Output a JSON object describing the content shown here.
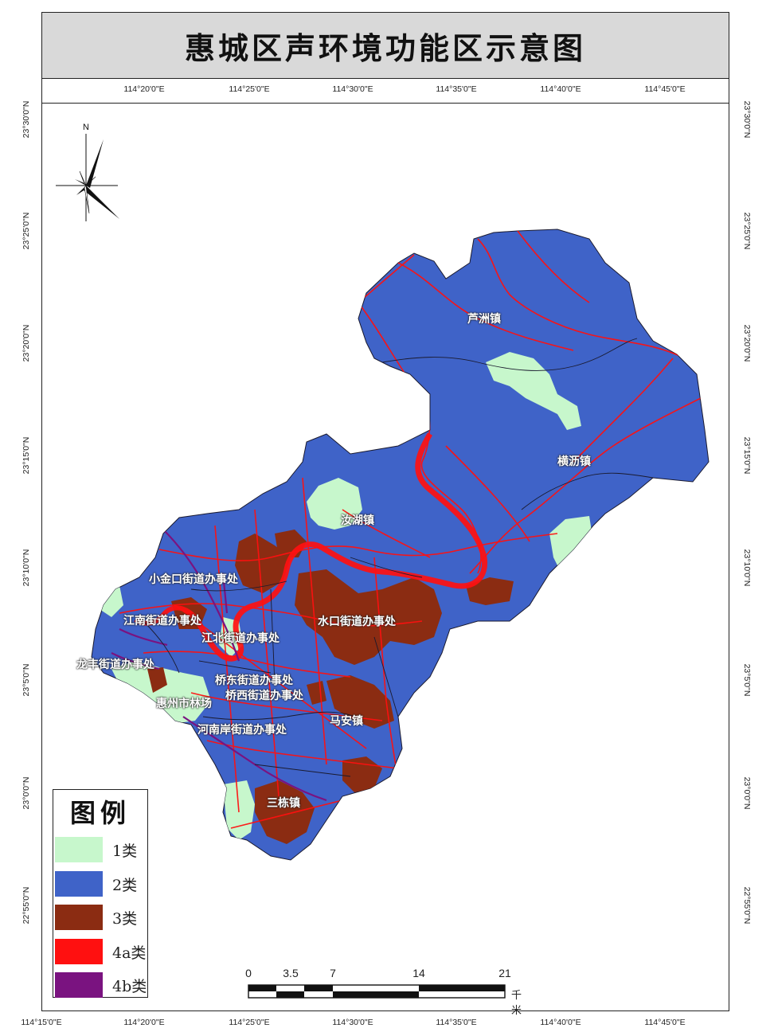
{
  "title": "惠城区声环境功能区示意图",
  "graticule": {
    "lon_top": [
      "114°20'0\"E",
      "114°25'0\"E",
      "114°30'0\"E",
      "114°35'0\"E",
      "114°40'0\"E",
      "114°45'0\"E"
    ],
    "lon_bottom": [
      "114°15'0\"E",
      "114°20'0\"E",
      "114°25'0\"E",
      "114°30'0\"E",
      "114°35'0\"E",
      "114°40'0\"E",
      "114°45'0\"E"
    ],
    "lat_left": [
      "23°30'0\"N",
      "23°25'0\"N",
      "23°20'0\"N",
      "23°15'0\"N",
      "23°10'0\"N",
      "23°5'0\"N",
      "23°0'0\"N",
      "22°55'0\"N"
    ],
    "lat_right": [
      "23°30'0\"N",
      "23°25'0\"N",
      "23°20'0\"N",
      "23°15'0\"N",
      "23°10'0\"N",
      "23°5'0\"N",
      "23°0'0\"N",
      "22°55'0\"N"
    ]
  },
  "north_arrow": {
    "label": "N"
  },
  "places": {
    "luzhou": "芦洲镇",
    "hengli": "横沥镇",
    "ruhu": "汝湖镇",
    "xiaojinkou": "小金口街道办事处",
    "jiangnan": "江南街道办事处",
    "jiangbei": "江北街道办事处",
    "shuikou": "水口街道办事处",
    "longfeng": "龙丰街道办事处",
    "qiaodong": "桥东街道办事处",
    "qiaoxi": "桥西街道办事处",
    "linchang": "惠州市林场",
    "henan": "河南岸街道办事处",
    "maan": "马安镇",
    "sandong": "三栋镇"
  },
  "legend": {
    "title": "图例",
    "items": [
      {
        "label": "1类",
        "color": "#c7f7cc"
      },
      {
        "label": "2类",
        "color": "#3f63c8"
      },
      {
        "label": "3类",
        "color": "#8b2c12"
      },
      {
        "label": "4a类",
        "color": "#ff1010"
      },
      {
        "label": "4b类",
        "color": "#7a1380"
      }
    ]
  },
  "scale_bar": {
    "ticks": [
      "0",
      "3.5",
      "7",
      "14",
      "21"
    ],
    "unit": "千米"
  },
  "colors": {
    "blue": "#3f63c8",
    "green": "#c7f7cc",
    "brown": "#8b2c12",
    "red": "#ff1010",
    "purple": "#7a1380",
    "boundary": "#1a1a2e"
  }
}
